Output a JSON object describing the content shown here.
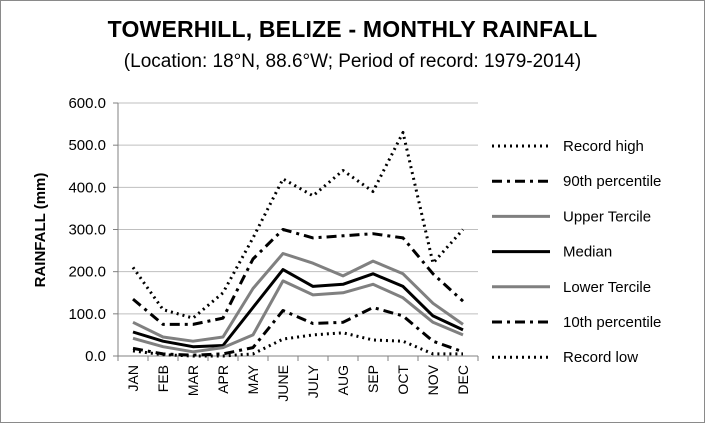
{
  "chart_data": {
    "type": "line",
    "title": "TOWERHILL, BELIZE - MONTHLY RAINFALL",
    "subtitle": "(Location: 18°N, 88.6°W; Period of record: 1979-2014)",
    "xlabel": "",
    "ylabel": "RAINFALL (mm)",
    "ylim": [
      0,
      600
    ],
    "yticks": [
      "0.0",
      "100.0",
      "200.0",
      "300.0",
      "400.0",
      "500.0",
      "600.0"
    ],
    "categories": [
      "JAN",
      "FEB",
      "MAR",
      "APR",
      "MAY",
      "JUNE",
      "JULY",
      "AUG",
      "SEP",
      "OCT",
      "NOV",
      "DEC"
    ],
    "grid": true,
    "legend_position": "right",
    "series": [
      {
        "name": "Record high",
        "color": "#000000",
        "style": "dotted",
        "width": 3,
        "values": [
          210,
          110,
          90,
          150,
          280,
          420,
          380,
          440,
          390,
          530,
          220,
          300
        ]
      },
      {
        "name": "90th percentile",
        "color": "#000000",
        "style": "dashdot",
        "width": 3,
        "values": [
          135,
          75,
          75,
          90,
          230,
          300,
          280,
          285,
          290,
          280,
          195,
          130
        ]
      },
      {
        "name": "Upper Tercile",
        "color": "#808080",
        "style": "solid",
        "width": 3,
        "values": [
          80,
          45,
          35,
          45,
          160,
          243,
          220,
          190,
          225,
          195,
          125,
          75
        ]
      },
      {
        "name": "Median",
        "color": "#000000",
        "style": "solid",
        "width": 3,
        "values": [
          57,
          35,
          22,
          25,
          115,
          205,
          165,
          170,
          195,
          165,
          95,
          62
        ]
      },
      {
        "name": "Lower Tercile",
        "color": "#808080",
        "style": "solid",
        "width": 3,
        "values": [
          42,
          22,
          10,
          20,
          50,
          178,
          145,
          150,
          170,
          138,
          80,
          50
        ]
      },
      {
        "name": "10th percentile",
        "color": "#000000",
        "style": "dashdot",
        "width": 3,
        "values": [
          18,
          5,
          2,
          5,
          20,
          108,
          77,
          80,
          115,
          95,
          35,
          10
        ]
      },
      {
        "name": "Record low",
        "color": "#000000",
        "style": "dotted",
        "width": 3,
        "values": [
          12,
          3,
          0,
          0,
          5,
          40,
          50,
          55,
          38,
          35,
          5,
          5
        ]
      }
    ]
  }
}
